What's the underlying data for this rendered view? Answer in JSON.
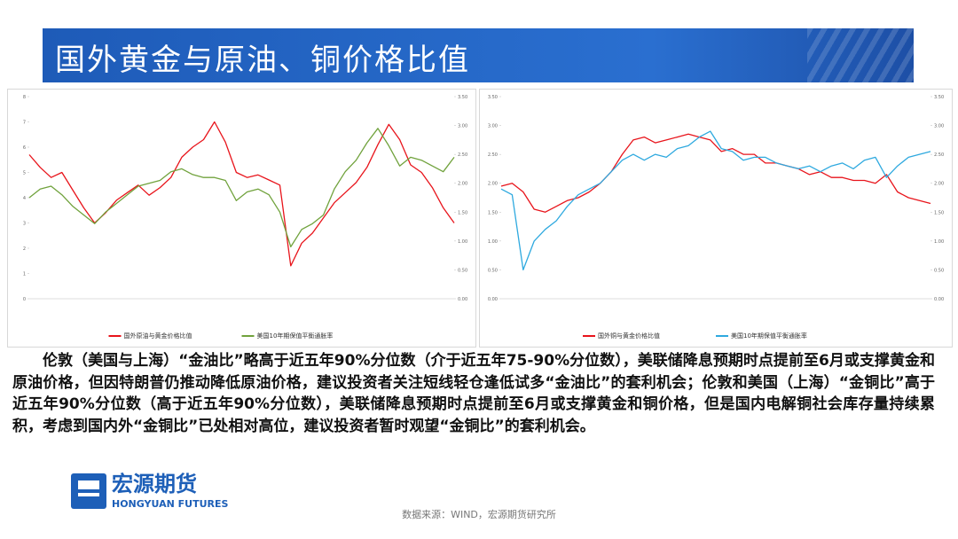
{
  "header": {
    "title": "国外黄金与原油、铜价格比值"
  },
  "chart_data": [
    {
      "type": "line",
      "categories": [
        null,
        null,
        null,
        null,
        null,
        null,
        null,
        null,
        null,
        null,
        null,
        null,
        null,
        null,
        null,
        null,
        null,
        null,
        null,
        null,
        null,
        null,
        null,
        null,
        null,
        null,
        null,
        null,
        null,
        null,
        null,
        null,
        null,
        null,
        null,
        null,
        null,
        null,
        null,
        null
      ],
      "ylim": [
        0,
        8
      ],
      "yticks": [
        0,
        1,
        2,
        3,
        4,
        5,
        6,
        7,
        8
      ],
      "y2lim": [
        0,
        3.5
      ],
      "y2ticks": [
        {
          "value": 0,
          "label": "0.00"
        },
        {
          "value": 0.5,
          "label": "0.50"
        },
        {
          "value": 1,
          "label": "1.00"
        },
        {
          "value": 1.5,
          "label": "1.50"
        },
        {
          "value": 2,
          "label": "2.00"
        },
        {
          "value": 2.5,
          "label": "2.50"
        },
        {
          "value": 3,
          "label": "3.00"
        },
        {
          "value": 3.5,
          "label": "3.50"
        }
      ],
      "series": [
        {
          "name": "国外原油与黄金价格比值",
          "color": "#e8141b",
          "values": [
            5.7,
            5.2,
            4.8,
            5.0,
            4.3,
            3.6,
            3.0,
            3.4,
            3.9,
            4.2,
            4.5,
            4.1,
            4.4,
            4.8,
            5.6,
            6.0,
            6.3,
            7.0,
            6.2,
            5.0,
            4.8,
            4.9,
            4.7,
            4.5,
            1.3,
            2.2,
            2.6,
            3.2,
            3.8,
            4.2,
            4.6,
            5.2,
            6.1,
            6.9,
            6.3,
            5.3,
            5.0,
            4.4,
            3.6,
            3.0
          ]
        },
        {
          "name": "美国10年期保值平衡通胀率",
          "color": "#70a23c",
          "axis": "y2",
          "values": [
            1.75,
            1.9,
            1.95,
            1.8,
            1.6,
            1.45,
            1.3,
            1.5,
            1.65,
            1.8,
            1.95,
            2.0,
            2.05,
            2.2,
            2.25,
            2.15,
            2.1,
            2.1,
            2.05,
            1.7,
            1.85,
            1.9,
            1.8,
            1.5,
            0.9,
            1.2,
            1.3,
            1.45,
            1.9,
            2.2,
            2.4,
            2.7,
            2.95,
            2.65,
            2.3,
            2.45,
            2.4,
            2.3,
            2.2,
            2.45
          ]
        }
      ]
    },
    {
      "type": "line",
      "categories": [
        null,
        null,
        null,
        null,
        null,
        null,
        null,
        null,
        null,
        null,
        null,
        null,
        null,
        null,
        null,
        null,
        null,
        null,
        null,
        null,
        null,
        null,
        null,
        null,
        null,
        null,
        null,
        null,
        null,
        null,
        null,
        null,
        null,
        null,
        null,
        null,
        null,
        null,
        null,
        null
      ],
      "ylim": [
        0,
        3.5
      ],
      "yticks": [
        {
          "value": 0,
          "label": "0.00"
        },
        {
          "value": 0.5,
          "label": "0.50"
        },
        {
          "value": 1,
          "label": "1.00"
        },
        {
          "value": 1.5,
          "label": "1.50"
        },
        {
          "value": 2,
          "label": "2.00"
        },
        {
          "value": 2.5,
          "label": "2.50"
        },
        {
          "value": 3,
          "label": "3.00"
        },
        {
          "value": 3.5,
          "label": "3.50"
        }
      ],
      "y2lim": [
        0,
        3.5
      ],
      "y2ticks": [
        {
          "value": 0,
          "label": "0.00"
        },
        {
          "value": 0.5,
          "label": "0.50"
        },
        {
          "value": 1,
          "label": "1.00"
        },
        {
          "value": 1.5,
          "label": "1.50"
        },
        {
          "value": 2,
          "label": "2.00"
        },
        {
          "value": 2.5,
          "label": "2.50"
        },
        {
          "value": 3,
          "label": "3.00"
        },
        {
          "value": 3.5,
          "label": "3.50"
        }
      ],
      "series": [
        {
          "name": "国外铜与黄金价格比值",
          "color": "#e8141b",
          "values": [
            1.95,
            2.0,
            1.85,
            1.55,
            1.5,
            1.6,
            1.7,
            1.75,
            1.85,
            2.0,
            2.2,
            2.5,
            2.75,
            2.8,
            2.7,
            2.75,
            2.8,
            2.85,
            2.8,
            2.75,
            2.55,
            2.6,
            2.5,
            2.5,
            2.35,
            2.35,
            2.3,
            2.25,
            2.15,
            2.2,
            2.1,
            2.1,
            2.05,
            2.05,
            2.0,
            2.15,
            1.85,
            1.75,
            1.7,
            1.65
          ]
        },
        {
          "name": "美国10年期保值平衡通胀率",
          "color": "#2ea9df",
          "axis": "y2",
          "values": [
            1.9,
            1.8,
            0.5,
            1.0,
            1.2,
            1.35,
            1.6,
            1.8,
            1.9,
            2.0,
            2.2,
            2.4,
            2.5,
            2.4,
            2.5,
            2.45,
            2.6,
            2.65,
            2.8,
            2.9,
            2.6,
            2.55,
            2.4,
            2.45,
            2.45,
            2.35,
            2.3,
            2.25,
            2.3,
            2.2,
            2.3,
            2.35,
            2.25,
            2.4,
            2.45,
            2.1,
            2.3,
            2.45,
            2.5,
            2.55
          ]
        }
      ]
    }
  ],
  "body": {
    "text": "伦敦（美国与上海）“金油比”略高于近五年90%分位数（介于近五年75-90%分位数），美联储降息预期时点提前至6月或支撑黄金和原油价格，但因特朗普仍推动降低原油价格，建议投资者关注短线轻仓逢低试多“金油比”的套利机会；伦敦和美国（上海）“金铜比”高于近五年90%分位数（高于近五年90%分位数），美联储降息预期时点提前至6月或支撑黄金和铜价格，但是国内电解铜社会库存量持续累积，考虑到国内外“金铜比”已处相对高位，建议投资者暂时观望“金铜比”的套利机会。"
  },
  "logo": {
    "name": "宏源期货",
    "english": "HONGYUAN FUTURES"
  },
  "footer": {
    "source": "数据来源：WIND，宏源期货研究所"
  }
}
